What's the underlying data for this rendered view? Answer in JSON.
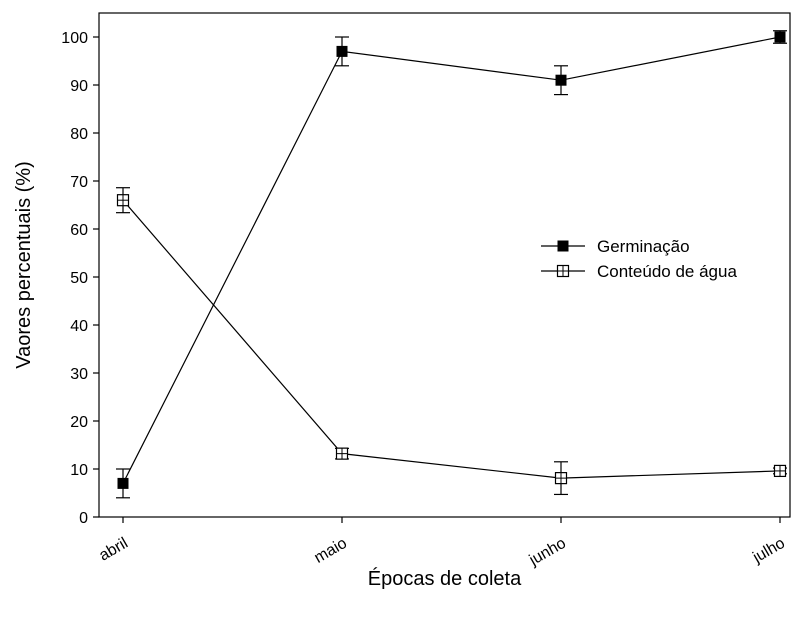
{
  "chart_data": {
    "type": "line",
    "title": "",
    "xlabel": "Épocas de coleta",
    "ylabel": "Vaores percentuais (%)",
    "categories": [
      "abril",
      "maio",
      "junho",
      "julho"
    ],
    "ylim": [
      0,
      105
    ],
    "yticks": [
      0,
      10,
      20,
      30,
      40,
      50,
      60,
      70,
      80,
      90,
      100
    ],
    "grid": false,
    "legend_position": "center-right",
    "series": [
      {
        "name": "Germinação",
        "marker": "filled-square",
        "color": "#000000",
        "values": [
          7,
          97,
          91,
          100
        ],
        "error": [
          3,
          3,
          3,
          1.3
        ]
      },
      {
        "name": "Conteúdo de água",
        "marker": "open-square",
        "color": "#000000",
        "values": [
          66,
          13.2,
          8.1,
          9.6
        ],
        "error": [
          2.6,
          1.1,
          3.4,
          0.6
        ]
      }
    ]
  }
}
